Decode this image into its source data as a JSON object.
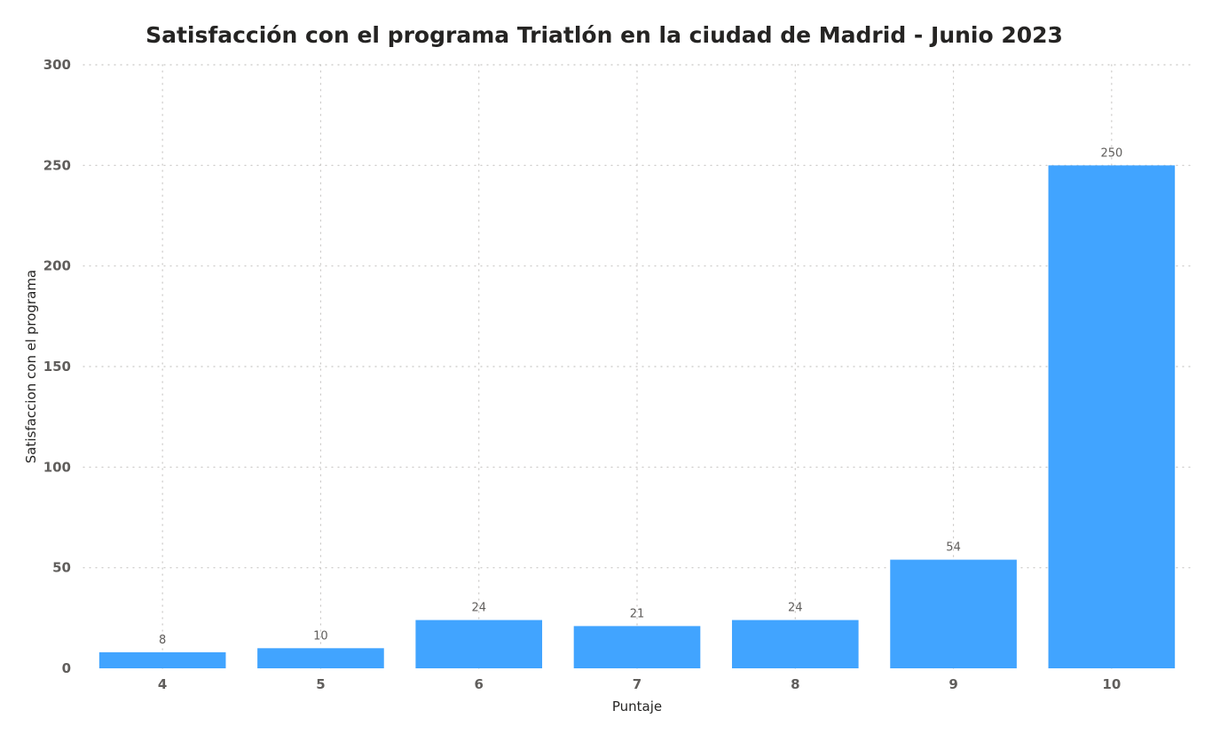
{
  "chart_data": {
    "type": "bar",
    "title": "Satisfacción con el programa Triatlón en la ciudad de Madrid - Junio 2023",
    "xlabel": "Puntaje",
    "ylabel": "Satisfaccion con el programa",
    "categories": [
      "4",
      "5",
      "6",
      "7",
      "8",
      "9",
      "10"
    ],
    "values": [
      8,
      10,
      24,
      21,
      24,
      54,
      250
    ],
    "data_labels": [
      "8",
      "10",
      "24",
      "21",
      "24",
      "54",
      "250"
    ],
    "y_ticks": [
      "0",
      "50",
      "100",
      "150",
      "200",
      "250",
      "300"
    ],
    "ylim": [
      0,
      300
    ],
    "grid": "dotted horizontal and vertical",
    "bar_color": "#41a4ff",
    "legend": "none"
  }
}
